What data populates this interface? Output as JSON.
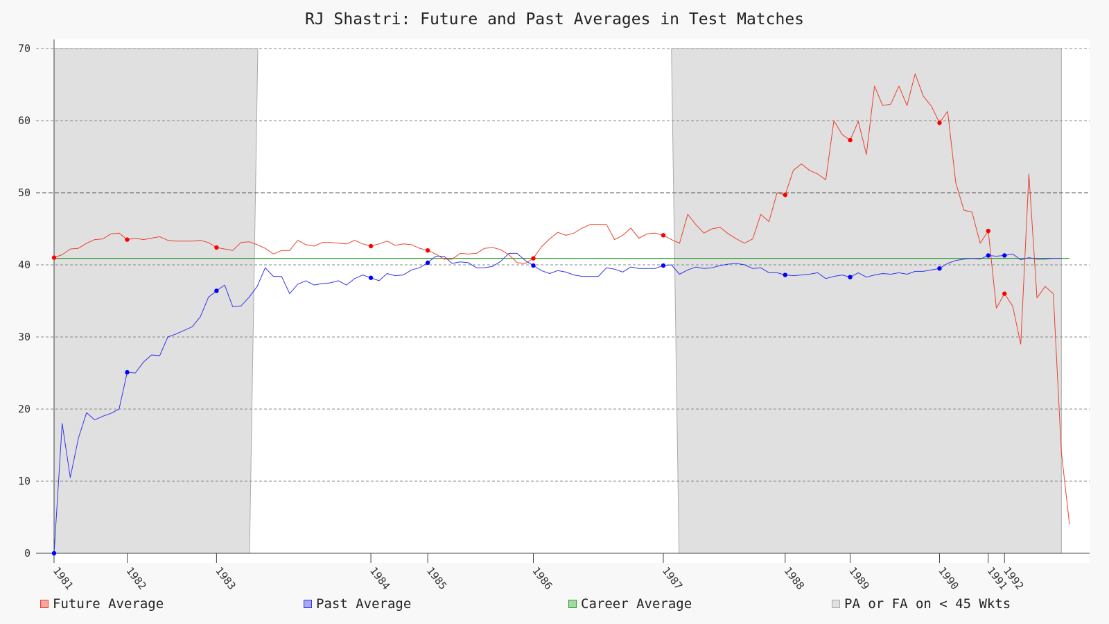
{
  "chart_data": {
    "type": "line",
    "title": "RJ Shastri: Future and Past Averages in Test Matches",
    "xlabel": "",
    "ylabel": "",
    "ylim": [
      0,
      70
    ],
    "yticks": [
      0,
      10,
      20,
      30,
      40,
      50,
      60,
      70
    ],
    "grid": true,
    "legend_placement": "bottom",
    "x_tick_labels": [
      {
        "label": "1981",
        "index": 0
      },
      {
        "label": "1982",
        "index": 9
      },
      {
        "label": "1983",
        "index": 20
      },
      {
        "label": "1984",
        "index": 39
      },
      {
        "label": "1985",
        "index": 46
      },
      {
        "label": "1986",
        "index": 59
      },
      {
        "label": "1987",
        "index": 75
      },
      {
        "label": "1988",
        "index": 90
      },
      {
        "label": "1989",
        "index": 98
      },
      {
        "label": "1990",
        "index": 109
      },
      {
        "label": "1991",
        "index": 115
      },
      {
        "label": "1992",
        "index": 117
      }
    ],
    "shaded_regions": [
      {
        "start_index": 0,
        "end_index": 25
      },
      {
        "start_index": 76,
        "end_index": 124
      }
    ],
    "series": [
      {
        "name": "Future Average",
        "color": "#e8412e",
        "values": [
          41.0,
          41.4,
          42.2,
          42.3,
          43.0,
          43.5,
          43.6,
          44.3,
          44.4,
          43.5,
          43.7,
          43.5,
          43.7,
          43.9,
          43.4,
          43.3,
          43.3,
          43.3,
          43.4,
          43.1,
          42.4,
          42.2,
          42.0,
          43.1,
          43.2,
          42.8,
          42.3,
          41.5,
          42.0,
          42.0,
          43.4,
          42.8,
          42.6,
          43.1,
          43.1,
          43.0,
          42.9,
          43.4,
          42.9,
          42.6,
          42.9,
          43.3,
          42.7,
          42.9,
          42.8,
          42.3,
          42.0,
          41.5,
          40.8,
          40.8,
          41.6,
          41.5,
          41.6,
          42.3,
          42.4,
          42.1,
          41.4,
          40.3,
          40.2,
          40.9,
          42.5,
          43.6,
          44.5,
          44.1,
          44.4,
          45.1,
          45.6,
          45.6,
          45.6,
          43.5,
          44.1,
          45.1,
          43.7,
          44.3,
          44.4,
          44.1,
          43.5,
          43.0,
          47.0,
          45.6,
          44.4,
          45.0,
          45.2,
          44.3,
          43.6,
          43.0,
          43.6,
          47.0,
          46.0,
          50.0,
          49.7,
          53.1,
          54.0,
          53.1,
          52.6,
          51.8,
          60.0,
          58.1,
          57.3,
          59.9,
          55.3,
          64.8,
          62.1,
          62.3,
          64.8,
          62.1,
          66.5,
          63.4,
          62.0,
          59.7,
          61.3,
          51.4,
          47.6,
          47.3,
          43.0,
          44.7,
          34.0,
          36.0,
          34.3,
          29.0,
          52.6,
          35.4,
          37.0,
          36.0,
          14.0,
          4.0
        ],
        "markers": [
          0,
          9,
          20,
          39,
          46,
          59,
          75,
          90,
          98,
          109,
          115,
          117
        ]
      },
      {
        "name": "Past Average",
        "color": "#3333ee",
        "values": [
          0.0,
          18.0,
          10.5,
          16.0,
          19.5,
          18.5,
          19.0,
          19.4,
          20.0,
          25.1,
          25.0,
          26.5,
          27.5,
          27.4,
          30.0,
          30.4,
          30.9,
          31.4,
          32.8,
          35.5,
          36.4,
          37.2,
          34.2,
          34.3,
          35.5,
          37.0,
          39.6,
          38.4,
          38.4,
          36.0,
          37.3,
          37.8,
          37.2,
          37.4,
          37.5,
          37.8,
          37.2,
          38.1,
          38.6,
          38.2,
          37.8,
          38.8,
          38.5,
          38.6,
          39.3,
          39.6,
          40.3,
          41.2,
          41.2,
          40.2,
          40.4,
          40.3,
          39.6,
          39.6,
          39.8,
          40.5,
          41.6,
          41.6,
          40.6,
          39.9,
          39.2,
          38.8,
          39.2,
          39.0,
          38.6,
          38.4,
          38.4,
          38.4,
          39.6,
          39.4,
          39.0,
          39.7,
          39.5,
          39.5,
          39.5,
          39.9,
          40.0,
          38.7,
          39.3,
          39.7,
          39.5,
          39.6,
          39.9,
          40.1,
          40.2,
          40.0,
          39.5,
          39.6,
          38.9,
          38.9,
          38.6,
          38.5,
          38.6,
          38.7,
          38.9,
          38.1,
          38.4,
          38.6,
          38.3,
          38.9,
          38.3,
          38.6,
          38.8,
          38.7,
          38.9,
          38.7,
          39.1,
          39.1,
          39.3,
          39.5,
          40.2,
          40.6,
          40.8,
          40.9,
          40.8,
          41.3,
          41.2,
          41.3,
          41.5,
          40.7,
          41.0,
          40.8,
          40.8,
          40.9,
          40.9
        ],
        "markers": [
          0,
          9,
          20,
          39,
          46,
          59,
          75,
          90,
          98,
          109,
          115,
          117
        ]
      },
      {
        "name": "Career Average",
        "color": "#2ca02c",
        "values": [
          40.9
        ]
      }
    ],
    "legend": [
      {
        "name": "Future Average",
        "fill": "#f5a7a0",
        "stroke": "#e8412e"
      },
      {
        "name": "Past Average",
        "fill": "#a8a8f0",
        "stroke": "#3333ee"
      },
      {
        "name": "Career Average",
        "fill": "#a6d8a6",
        "stroke": "#2ca02c"
      },
      {
        "name": "PA or FA on < 45 Wkts",
        "fill": "#e0e0e0",
        "stroke": "#aaaaaa"
      }
    ]
  }
}
